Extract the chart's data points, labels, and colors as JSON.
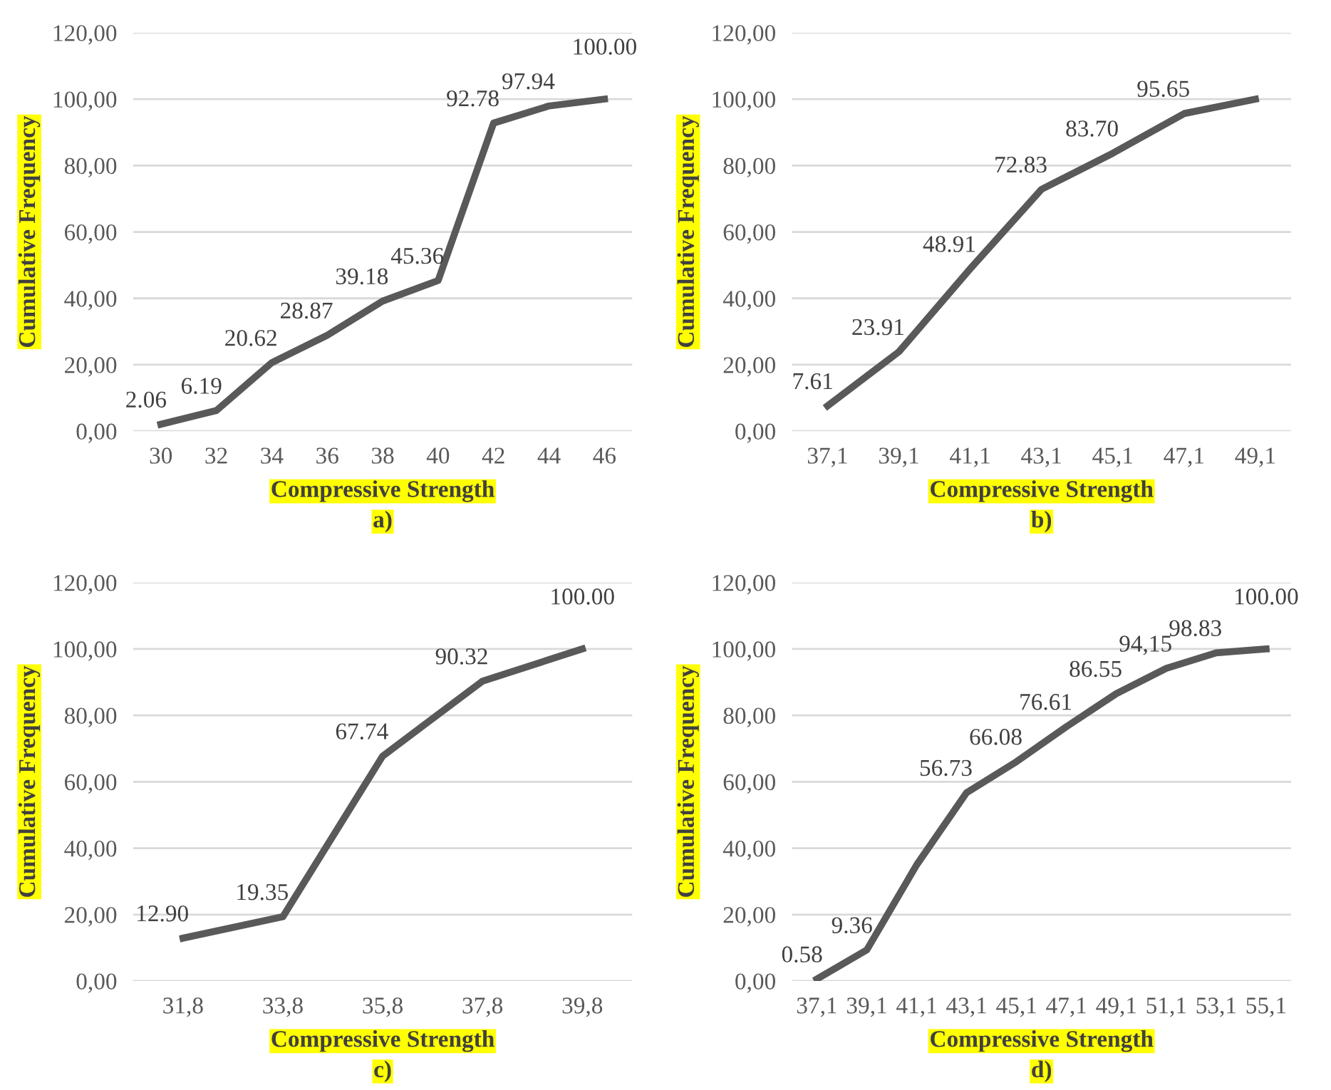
{
  "chart_data": [
    {
      "type": "line",
      "categories": [
        "30",
        "32",
        "34",
        "36",
        "38",
        "40",
        "42",
        "44",
        "46"
      ],
      "series": [
        {
          "color": "#595959",
          "values": [
            2.06,
            6.19,
            20.62,
            28.87,
            39.18,
            45.36,
            92.78,
            97.94,
            100.0
          ],
          "value_labels": [
            "2.06",
            "6.19",
            "20.62",
            "28.87",
            "39.18",
            "45.36",
            "92.78",
            "97.94",
            "100.00"
          ]
        }
      ],
      "xlabel": "Compressive Strength",
      "ylabel": "Cumulative Frequency",
      "annotations": [
        "a)"
      ],
      "ylim": [
        0,
        120
      ],
      "yticks": [
        {
          "value": 0,
          "label": "0,00"
        },
        {
          "value": 20,
          "label": "20,00"
        },
        {
          "value": 40,
          "label": "40,00"
        },
        {
          "value": 60,
          "label": "60,00"
        },
        {
          "value": 80,
          "label": "80,00"
        },
        {
          "value": 100,
          "label": "100,00"
        },
        {
          "value": 120,
          "label": "120,00"
        }
      ],
      "grid": "y",
      "marker": "none",
      "line_style": "solid"
    },
    {
      "type": "line",
      "categories": [
        "37,1",
        "39,1",
        "41,1",
        "43,1",
        "45,1",
        "47,1",
        "49,1"
      ],
      "series": [
        {
          "color": "#595959",
          "values": [
            7.61,
            23.91,
            48.91,
            72.83,
            83.7,
            95.65,
            100
          ],
          "value_labels": [
            "7.61",
            "23.91",
            "48.91",
            "72.83",
            "83.70",
            "95.65",
            null
          ]
        }
      ],
      "xlabel": "Compressive Strength",
      "ylabel": "Cumulative Frequency",
      "annotations": [
        "b)"
      ],
      "ylim": [
        0,
        120
      ],
      "yticks": [
        {
          "value": 0,
          "label": "0,00"
        },
        {
          "value": 20,
          "label": "20,00"
        },
        {
          "value": 40,
          "label": "40,00"
        },
        {
          "value": 60,
          "label": "60,00"
        },
        {
          "value": 80,
          "label": "80,00"
        },
        {
          "value": 100,
          "label": "100,00"
        },
        {
          "value": 120,
          "label": "120,00"
        }
      ],
      "grid": "y",
      "marker": "none",
      "line_style": "solid"
    },
    {
      "type": "line",
      "categories": [
        "31,8",
        "33,8",
        "35,8",
        "37,8",
        "39,8"
      ],
      "series": [
        {
          "color": "#595959",
          "values": [
            12.9,
            19.35,
            67.74,
            90.32,
            100.0
          ],
          "value_labels": [
            "12.90",
            "19.35",
            "67.74",
            "90.32",
            "100.00"
          ]
        }
      ],
      "xlabel": "Compressive Strength",
      "ylabel": "Cumulative Frequency",
      "annotations": [
        "c)"
      ],
      "ylim": [
        0,
        120
      ],
      "yticks": [
        {
          "value": 0,
          "label": "0,00"
        },
        {
          "value": 20,
          "label": "20,00"
        },
        {
          "value": 40,
          "label": "40,00"
        },
        {
          "value": 60,
          "label": "60,00"
        },
        {
          "value": 80,
          "label": "80,00"
        },
        {
          "value": 100,
          "label": "100,00"
        },
        {
          "value": 120,
          "label": "120,00"
        }
      ],
      "grid": "y",
      "marker": "none",
      "line_style": "solid"
    },
    {
      "type": "line",
      "categories": [
        "37,1",
        "39,1",
        "41,1",
        "43,1",
        "45,1",
        "47,1",
        "49,1",
        "51,1",
        "53,1",
        "55,1"
      ],
      "series": [
        {
          "color": "#595959",
          "values": [
            0.58,
            9.36,
            35,
            56.73,
            66.08,
            76.61,
            86.55,
            94.15,
            98.83,
            100.0
          ],
          "value_labels": [
            "0.58",
            "9.36",
            null,
            "56.73",
            "66.08",
            "76.61",
            "86.55",
            "94,15",
            "98.83",
            "100.00"
          ]
        }
      ],
      "xlabel": "Compressive Strength",
      "ylabel": "Cumulative Frequency",
      "annotations": [
        "d)"
      ],
      "ylim": [
        0,
        120
      ],
      "yticks": [
        {
          "value": 0,
          "label": "0,00"
        },
        {
          "value": 20,
          "label": "20,00"
        },
        {
          "value": 40,
          "label": "40,00"
        },
        {
          "value": 60,
          "label": "60,00"
        },
        {
          "value": 80,
          "label": "80,00"
        },
        {
          "value": 100,
          "label": "100,00"
        },
        {
          "value": 120,
          "label": "120,00"
        }
      ],
      "grid": "y",
      "marker": "none",
      "line_style": "solid"
    }
  ]
}
